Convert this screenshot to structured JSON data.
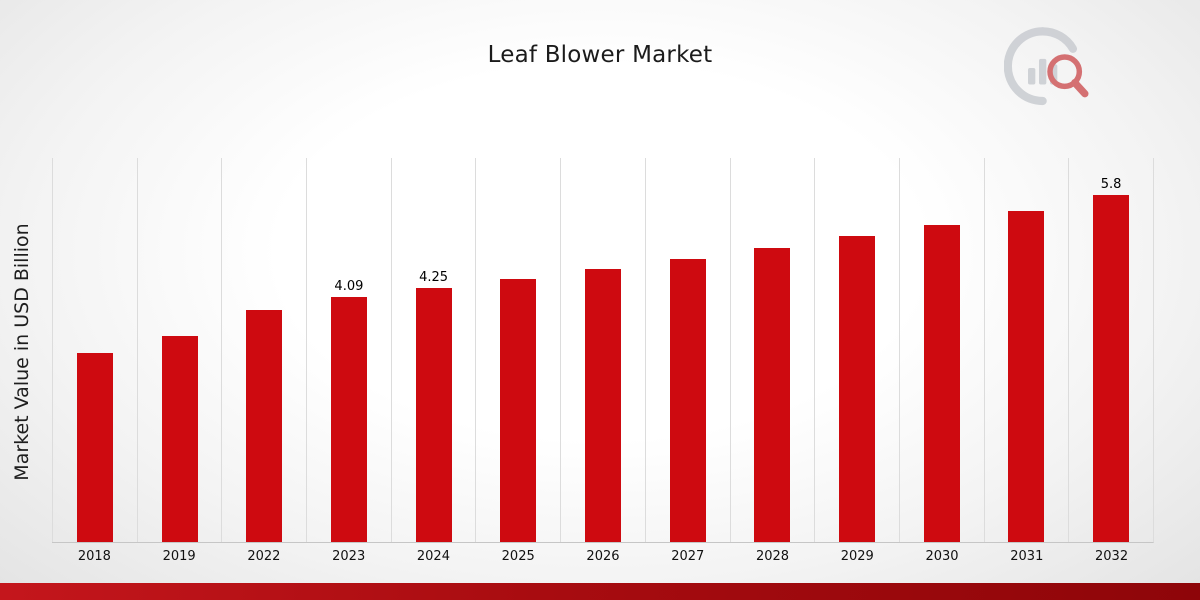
{
  "chart_data": {
    "type": "bar",
    "title": "Leaf Blower Market",
    "ylabel": "Market Value in USD Billion",
    "categories": [
      "2018",
      "2019",
      "2022",
      "2023",
      "2024",
      "2025",
      "2026",
      "2027",
      "2028",
      "2029",
      "2030",
      "2031",
      "2032"
    ],
    "values": [
      3.16,
      3.45,
      3.88,
      4.09,
      4.25,
      4.4,
      4.57,
      4.74,
      4.92,
      5.12,
      5.3,
      5.54,
      5.8
    ],
    "data_labels": [
      "",
      "",
      "",
      "4.09",
      "4.25",
      "",
      "",
      "",
      "",
      "",
      "",
      "",
      "5.8"
    ],
    "ylim": [
      0,
      6.42
    ],
    "grid": "vertical",
    "legend": "none",
    "colors": {
      "bar": "#ce0a10",
      "footer_band": "#a80c10",
      "gridline": "#dcdcdc"
    }
  },
  "branding": {
    "logo": "bar-chart-magnifier-logo"
  }
}
